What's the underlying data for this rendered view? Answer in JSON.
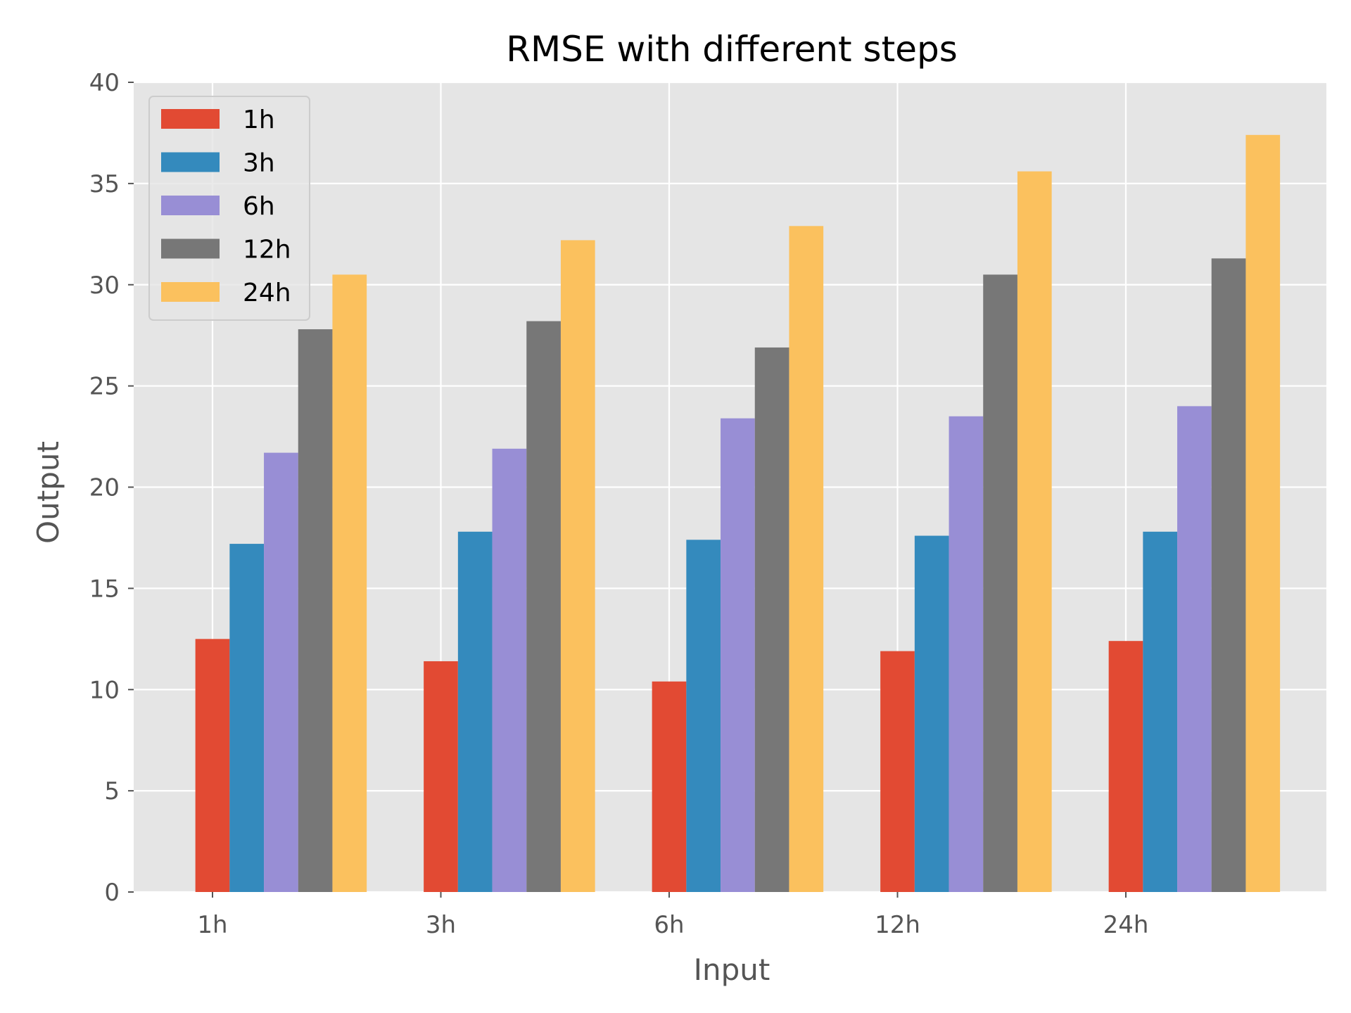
{
  "chart_data": {
    "type": "bar",
    "title": "RMSE with different steps",
    "xlabel": "Input",
    "ylabel": "Output",
    "categories": [
      "1h",
      "3h",
      "6h",
      "12h",
      "24h"
    ],
    "ylim": [
      0,
      40
    ],
    "yticks": [
      0,
      5,
      10,
      15,
      20,
      25,
      30,
      35,
      40
    ],
    "grid": true,
    "legend_position": "top-left",
    "background": "#e5e5e5",
    "series": [
      {
        "name": "1h",
        "color": "#e24a33",
        "values": [
          12.5,
          11.4,
          10.4,
          11.9,
          12.4
        ]
      },
      {
        "name": "3h",
        "color": "#348abd",
        "values": [
          17.2,
          17.8,
          17.4,
          17.6,
          17.8
        ]
      },
      {
        "name": "6h",
        "color": "#988ed5",
        "values": [
          21.7,
          21.9,
          23.4,
          23.5,
          24.0
        ]
      },
      {
        "name": "12h",
        "color": "#777777",
        "values": [
          27.8,
          28.2,
          26.9,
          30.5,
          31.3
        ]
      },
      {
        "name": "24h",
        "color": "#fbc15e",
        "values": [
          30.5,
          32.2,
          32.9,
          35.6,
          37.4
        ]
      }
    ]
  }
}
